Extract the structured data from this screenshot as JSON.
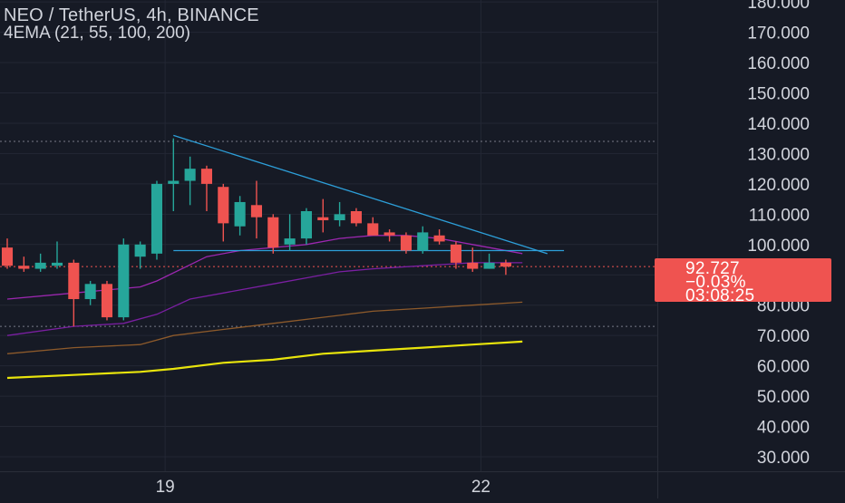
{
  "header": {
    "title": "NEO / TetherUS, 4h, BINANCE",
    "indicator": "4EMA (21, 55, 100, 200)"
  },
  "price_tag": {
    "price": "92.727",
    "change": "−0.03%",
    "countdown": "03:08:25",
    "color": "#ef5350"
  },
  "colors": {
    "background": "#161a25",
    "grid": "#232734",
    "up": "#26a69a",
    "down": "#ef5350",
    "text": "#d1d4dc",
    "trendline": "#2d9fd9",
    "ema21": "#9c27b0",
    "ema55": "#7b1fa2",
    "ema100": "#8d5a2b",
    "ema200": "#e8e40c"
  },
  "chart_data": {
    "type": "candlestick",
    "title": "NEO / TetherUS, 4h, BINANCE",
    "ylim": [
      25,
      186
    ],
    "yticks": [
      30,
      40,
      50,
      60,
      70,
      80,
      90,
      100,
      110,
      120,
      130,
      140,
      150,
      160,
      170,
      180
    ],
    "ytick_labels": [
      "30.000",
      "40.000",
      "50.000",
      "60.000",
      "70.000",
      "80.000",
      "90.000",
      "100.000",
      "110.000",
      "120.000",
      "130.000",
      "140.000",
      "150.000",
      "160.000",
      "170.000",
      "180.000"
    ],
    "x_ticks": [
      {
        "label": "19",
        "bar": 9.5
      },
      {
        "label": "22",
        "bar": 28.5
      }
    ],
    "candles": [
      {
        "o": 99,
        "h": 102,
        "l": 92,
        "c": 93
      },
      {
        "o": 93,
        "h": 96,
        "l": 91,
        "c": 92
      },
      {
        "o": 92,
        "h": 97,
        "l": 91,
        "c": 94
      },
      {
        "o": 93,
        "h": 101,
        "l": 92,
        "c": 94
      },
      {
        "o": 94,
        "h": 95,
        "l": 73,
        "c": 82
      },
      {
        "o": 82,
        "h": 88,
        "l": 80,
        "c": 87
      },
      {
        "o": 87,
        "h": 88,
        "l": 75,
        "c": 76
      },
      {
        "o": 76,
        "h": 102,
        "l": 75,
        "c": 100
      },
      {
        "o": 96,
        "h": 101,
        "l": 92,
        "c": 100
      },
      {
        "o": 97,
        "h": 121,
        "l": 95,
        "c": 120
      },
      {
        "o": 120,
        "h": 135,
        "l": 111,
        "c": 121
      },
      {
        "o": 121,
        "h": 129,
        "l": 113,
        "c": 125
      },
      {
        "o": 125,
        "h": 126,
        "l": 111,
        "c": 120
      },
      {
        "o": 119,
        "h": 120,
        "l": 101,
        "c": 107
      },
      {
        "o": 106,
        "h": 116,
        "l": 103,
        "c": 114
      },
      {
        "o": 113,
        "h": 121,
        "l": 102,
        "c": 109
      },
      {
        "o": 109,
        "h": 110,
        "l": 97,
        "c": 99
      },
      {
        "o": 100,
        "h": 110,
        "l": 98,
        "c": 102
      },
      {
        "o": 102,
        "h": 112,
        "l": 100,
        "c": 111
      },
      {
        "o": 109,
        "h": 115,
        "l": 104,
        "c": 108
      },
      {
        "o": 108,
        "h": 114,
        "l": 106,
        "c": 110
      },
      {
        "o": 111,
        "h": 112,
        "l": 106,
        "c": 107
      },
      {
        "o": 107,
        "h": 109,
        "l": 103,
        "c": 103
      },
      {
        "o": 104,
        "h": 105,
        "l": 101,
        "c": 103
      },
      {
        "o": 103,
        "h": 104,
        "l": 97,
        "c": 98
      },
      {
        "o": 98,
        "h": 106,
        "l": 97,
        "c": 104
      },
      {
        "o": 103,
        "h": 105,
        "l": 100,
        "c": 101
      },
      {
        "o": 100,
        "h": 101,
        "l": 92,
        "c": 94
      },
      {
        "o": 94,
        "h": 99,
        "l": 91,
        "c": 92
      },
      {
        "o": 92,
        "h": 97,
        "l": 92,
        "c": 94
      },
      {
        "o": 94,
        "h": 95,
        "l": 90,
        "c": 92.727
      }
    ],
    "series": [
      {
        "name": "EMA 21",
        "color": "#9c27b0",
        "points": [
          [
            0,
            82
          ],
          [
            4,
            84
          ],
          [
            8,
            86
          ],
          [
            9,
            88
          ],
          [
            12,
            96
          ],
          [
            14,
            98
          ],
          [
            16,
            99
          ],
          [
            18,
            100
          ],
          [
            20,
            102
          ],
          [
            22,
            103
          ],
          [
            24,
            103
          ],
          [
            26,
            102
          ],
          [
            28,
            100
          ],
          [
            31,
            97
          ]
        ]
      },
      {
        "name": "EMA 55",
        "color": "#7b1fa2",
        "points": [
          [
            0,
            70
          ],
          [
            4,
            73
          ],
          [
            7,
            74
          ],
          [
            9,
            77
          ],
          [
            11,
            82
          ],
          [
            13,
            84
          ],
          [
            16,
            87
          ],
          [
            18,
            89
          ],
          [
            20,
            91
          ],
          [
            22,
            92
          ],
          [
            25,
            93
          ],
          [
            28,
            94
          ],
          [
            31,
            94
          ]
        ]
      },
      {
        "name": "EMA 100",
        "color": "#8d5a2b",
        "points": [
          [
            0,
            64
          ],
          [
            4,
            66
          ],
          [
            8,
            67
          ],
          [
            10,
            70
          ],
          [
            13,
            72
          ],
          [
            16,
            74
          ],
          [
            19,
            76
          ],
          [
            22,
            78
          ],
          [
            25,
            79
          ],
          [
            28,
            80
          ],
          [
            31,
            81
          ]
        ]
      },
      {
        "name": "EMA 200",
        "color": "#e8e40c",
        "points": [
          [
            0,
            56
          ],
          [
            4,
            57
          ],
          [
            8,
            58
          ],
          [
            10,
            59
          ],
          [
            13,
            61
          ],
          [
            16,
            62
          ],
          [
            19,
            64
          ],
          [
            22,
            65
          ],
          [
            25,
            66
          ],
          [
            28,
            67
          ],
          [
            31,
            68
          ]
        ]
      }
    ],
    "trendlines": [
      {
        "name": "descending resistance",
        "points": [
          [
            10,
            136
          ],
          [
            32.5,
            97
          ]
        ]
      },
      {
        "name": "horizontal support",
        "points": [
          [
            10,
            98
          ],
          [
            33.5,
            98
          ]
        ]
      }
    ],
    "reference_lines": [
      134,
      73
    ],
    "current_price_line": 92.727
  }
}
